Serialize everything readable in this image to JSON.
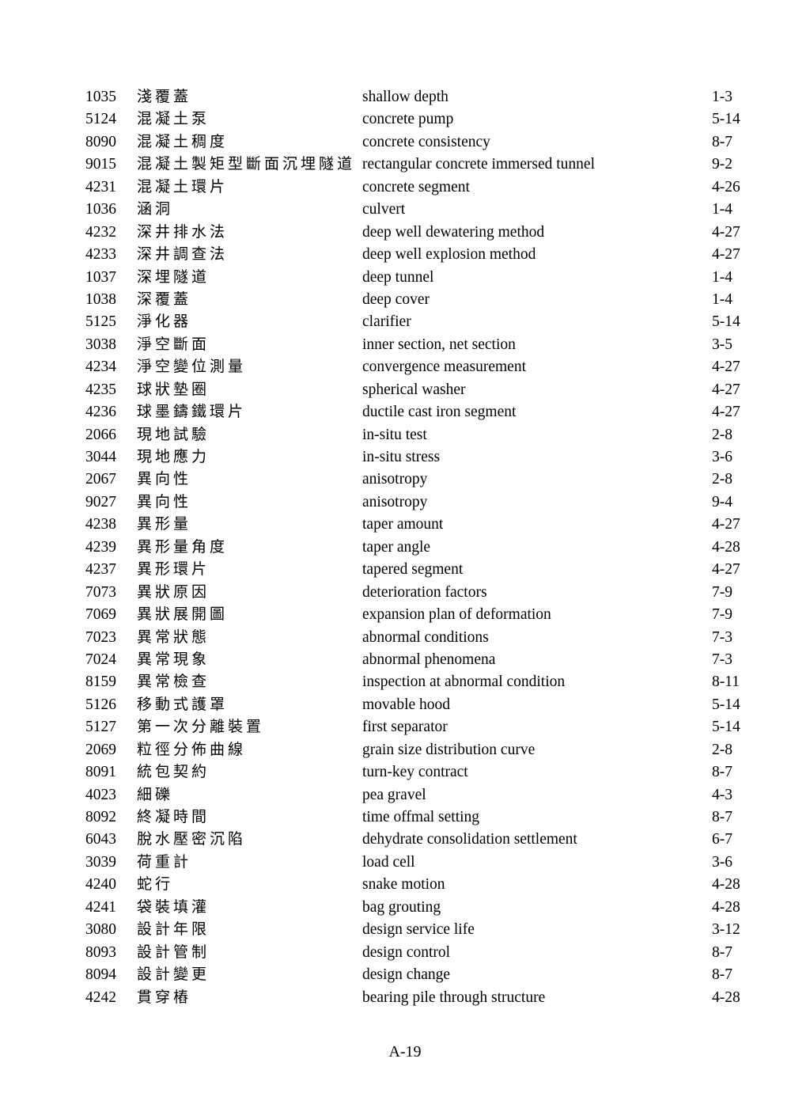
{
  "footer": {
    "page_number": "A-19"
  },
  "glossary": {
    "rows": [
      {
        "code": "1035",
        "zh": "淺覆蓋",
        "en": "shallow depth",
        "ref": "1-3"
      },
      {
        "code": "5124",
        "zh": "混凝土泵",
        "en": "concrete pump",
        "ref": "5-14"
      },
      {
        "code": "8090",
        "zh": "混凝土稠度",
        "en": "concrete consistency",
        "ref": "8-7"
      },
      {
        "code": "9015",
        "zh": "混凝土製矩型斷面沉埋隧道",
        "en": "rectangular concrete immersed tunnel",
        "ref": "9-2"
      },
      {
        "code": "4231",
        "zh": "混凝土環片",
        "en": "concrete segment",
        "ref": "4-26"
      },
      {
        "code": "1036",
        "zh": "涵洞",
        "en": "culvert",
        "ref": "1-4"
      },
      {
        "code": "4232",
        "zh": "深井排水法",
        "en": "deep well dewatering method",
        "ref": "4-27"
      },
      {
        "code": "4233",
        "zh": "深井調查法",
        "en": "deep well explosion method",
        "ref": "4-27"
      },
      {
        "code": "1037",
        "zh": "深埋隧道",
        "en": "deep tunnel",
        "ref": "1-4"
      },
      {
        "code": "1038",
        "zh": "深覆蓋",
        "en": "deep cover",
        "ref": "1-4"
      },
      {
        "code": "5125",
        "zh": "淨化器",
        "en": "clarifier",
        "ref": "5-14"
      },
      {
        "code": "3038",
        "zh": "淨空斷面",
        "en": "inner section, net section",
        "ref": "3-5"
      },
      {
        "code": "4234",
        "zh": "淨空變位測量",
        "en": "convergence measurement",
        "ref": "4-27"
      },
      {
        "code": "4235",
        "zh": "球狀墊圈",
        "en": "spherical washer",
        "ref": "4-27"
      },
      {
        "code": "4236",
        "zh": "球墨鑄鐵環片",
        "en": "ductile cast iron segment",
        "ref": "4-27"
      },
      {
        "code": "2066",
        "zh": "現地試驗",
        "en": "in-situ test",
        "ref": "2-8"
      },
      {
        "code": "3044",
        "zh": "現地應力",
        "en": "in-situ stress",
        "ref": "3-6"
      },
      {
        "code": "2067",
        "zh": "異向性",
        "en": "anisotropy",
        "ref": "2-8"
      },
      {
        "code": "9027",
        "zh": "異向性",
        "en": "anisotropy",
        "ref": "9-4"
      },
      {
        "code": "4238",
        "zh": "異形量",
        "en": "taper amount",
        "ref": "4-27"
      },
      {
        "code": "4239",
        "zh": "異形量角度",
        "en": "taper angle",
        "ref": "4-28"
      },
      {
        "code": "4237",
        "zh": "異形環片",
        "en": "tapered segment",
        "ref": "4-27"
      },
      {
        "code": "7073",
        "zh": "異狀原因",
        "en": "deterioration factors",
        "ref": "7-9"
      },
      {
        "code": "7069",
        "zh": "異狀展開圖",
        "en": "expansion plan of deformation",
        "ref": "7-9"
      },
      {
        "code": "7023",
        "zh": "異常狀態",
        "en": "abnormal conditions",
        "ref": "7-3"
      },
      {
        "code": "7024",
        "zh": "異常現象",
        "en": "abnormal phenomena",
        "ref": "7-3"
      },
      {
        "code": "8159",
        "zh": "異常檢查",
        "en": "inspection at abnormal condition",
        "ref": "8-11"
      },
      {
        "code": "5126",
        "zh": "移動式護罩",
        "en": "movable hood",
        "ref": "5-14"
      },
      {
        "code": "5127",
        "zh": "第一次分離裝置",
        "en": "first separator",
        "ref": "5-14"
      },
      {
        "code": "2069",
        "zh": "粒徑分佈曲線",
        "en": "grain size distribution curve",
        "ref": "2-8"
      },
      {
        "code": "8091",
        "zh": "統包契約",
        "en": "turn-key contract",
        "ref": "8-7"
      },
      {
        "code": "4023",
        "zh": "細礫",
        "en": "pea gravel",
        "ref": "4-3"
      },
      {
        "code": "8092",
        "zh": "終凝時間",
        "en": "time offmal setting",
        "ref": "8-7"
      },
      {
        "code": "6043",
        "zh": "脫水壓密沉陷",
        "en": "dehydrate consolidation settlement",
        "ref": "6-7"
      },
      {
        "code": "3039",
        "zh": "荷重計",
        "en": "load cell",
        "ref": "3-6"
      },
      {
        "code": "4240",
        "zh": "蛇行",
        "en": "snake motion",
        "ref": "4-28"
      },
      {
        "code": "4241",
        "zh": "袋裝填灌",
        "en": "bag grouting",
        "ref": "4-28"
      },
      {
        "code": "3080",
        "zh": "設計年限",
        "en": "design service life",
        "ref": "3-12"
      },
      {
        "code": "8093",
        "zh": "設計管制",
        "en": "design control",
        "ref": "8-7"
      },
      {
        "code": "8094",
        "zh": "設計變更",
        "en": "design change",
        "ref": "8-7"
      },
      {
        "code": "4242",
        "zh": "貫穿樁",
        "en": "bearing pile through structure",
        "ref": "4-28"
      }
    ]
  }
}
